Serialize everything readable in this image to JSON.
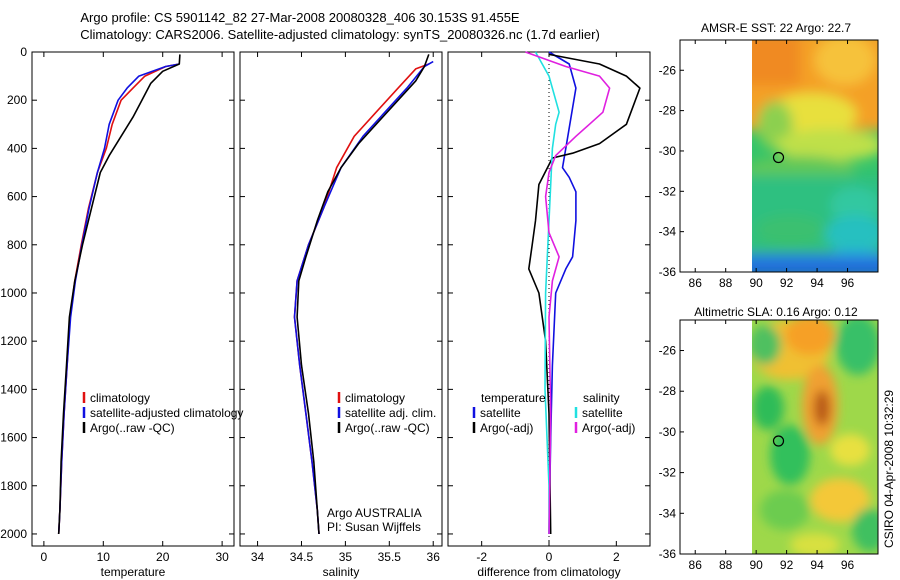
{
  "header": {
    "line1": "Argo profile: CS 5901142_82 27-Mar-2008 20080328_406 30.153S 91.455E",
    "line2": "Climatology: CARS2006. Satellite-adjusted climatology: synTS_20080326.nc (1.7d earlier)"
  },
  "side_label": "CSIRO 04-Apr-2008 10:32:29",
  "colors": {
    "red": "#e01010",
    "blue": "#1010e0",
    "black": "#000000",
    "cyan": "#20e0e0",
    "magenta": "#e020e0"
  },
  "chart_data": [
    {
      "type": "line",
      "id": "temperature",
      "xlabel": "temperature",
      "xlim": [
        -2,
        32
      ],
      "ylim": [
        2050,
        0
      ],
      "xticks": [
        0,
        10,
        20,
        30
      ],
      "yticks": [
        0,
        200,
        400,
        600,
        800,
        1000,
        1200,
        1400,
        1600,
        1800,
        2000
      ],
      "legend": [
        "climatology",
        "satellite-adjusted climatology",
        "Argo(..raw -QC)"
      ],
      "series": [
        {
          "name": "climatology",
          "color": "red",
          "points": [
            [
              22.8,
              50
            ],
            [
              20.5,
              60
            ],
            [
              17,
              100
            ],
            [
              15,
              150
            ],
            [
              13,
              200
            ],
            [
              11.5,
              300
            ],
            [
              10.5,
              400
            ],
            [
              9,
              500
            ],
            [
              7.5,
              650
            ],
            [
              6.3,
              800
            ],
            [
              5.2,
              950
            ],
            [
              4.4,
              1100
            ],
            [
              3.9,
              1300
            ],
            [
              3.4,
              1500
            ],
            [
              3.0,
              1700
            ],
            [
              2.7,
              1900
            ],
            [
              2.5,
              2000
            ]
          ]
        },
        {
          "name": "satellite-adjusted climatology",
          "color": "blue",
          "points": [
            [
              22.8,
              50
            ],
            [
              20.5,
              60
            ],
            [
              16,
              100
            ],
            [
              14,
              150
            ],
            [
              12.5,
              200
            ],
            [
              11,
              300
            ],
            [
              10.2,
              400
            ],
            [
              9,
              500
            ],
            [
              7.6,
              650
            ],
            [
              6.4,
              800
            ],
            [
              5.3,
              950
            ],
            [
              4.5,
              1100
            ],
            [
              3.9,
              1300
            ],
            [
              3.4,
              1500
            ],
            [
              3.0,
              1700
            ],
            [
              2.7,
              1900
            ],
            [
              2.5,
              2000
            ]
          ]
        },
        {
          "name": "Argo(..raw -QC)",
          "color": "black",
          "points": [
            [
              22.9,
              10
            ],
            [
              22.8,
              50
            ],
            [
              20,
              80
            ],
            [
              18,
              130
            ],
            [
              16.5,
              200
            ],
            [
              15,
              270
            ],
            [
              13,
              350
            ],
            [
              11,
              430
            ],
            [
              9.5,
              500
            ],
            [
              8,
              650
            ],
            [
              6.5,
              800
            ],
            [
              5.2,
              950
            ],
            [
              4.3,
              1100
            ],
            [
              3.8,
              1300
            ],
            [
              3.3,
              1500
            ],
            [
              2.9,
              1700
            ],
            [
              2.7,
              1900
            ],
            [
              2.5,
              2000
            ]
          ]
        }
      ]
    },
    {
      "type": "line",
      "id": "salinity",
      "xlabel": "salinity",
      "xlim": [
        33.8,
        36.1
      ],
      "ylim": [
        2050,
        0
      ],
      "xticks": [
        34,
        34.5,
        35,
        35.5,
        36
      ],
      "yticks": [
        0,
        200,
        400,
        600,
        800,
        1000,
        1200,
        1400,
        1600,
        1800,
        2000
      ],
      "legend": [
        "climatology",
        "satellite adj. clim.",
        "Argo(..raw -QC)"
      ],
      "annotation": [
        "Argo AUSTRALIA",
        "PI: Susan Wijffels"
      ],
      "series": [
        {
          "name": "climatology",
          "color": "red",
          "points": [
            [
              35.95,
              50
            ],
            [
              35.8,
              70
            ],
            [
              35.6,
              150
            ],
            [
              35.35,
              250
            ],
            [
              35.1,
              350
            ],
            [
              34.9,
              480
            ],
            [
              34.75,
              650
            ],
            [
              34.58,
              800
            ],
            [
              34.45,
              950
            ],
            [
              34.42,
              1100
            ],
            [
              34.48,
              1300
            ],
            [
              34.55,
              1500
            ],
            [
              34.62,
              1700
            ],
            [
              34.68,
              1900
            ],
            [
              34.7,
              2000
            ]
          ]
        },
        {
          "name": "satellite adj. clim.",
          "color": "blue",
          "points": [
            [
              36.0,
              40
            ],
            [
              35.9,
              60
            ],
            [
              35.7,
              150
            ],
            [
              35.45,
              250
            ],
            [
              35.2,
              350
            ],
            [
              34.95,
              480
            ],
            [
              34.75,
              650
            ],
            [
              34.58,
              800
            ],
            [
              34.45,
              950
            ],
            [
              34.42,
              1100
            ],
            [
              34.48,
              1300
            ],
            [
              34.55,
              1500
            ],
            [
              34.62,
              1700
            ],
            [
              34.68,
              1900
            ],
            [
              34.7,
              2000
            ]
          ]
        },
        {
          "name": "Argo(..raw -QC)",
          "color": "black",
          "points": [
            [
              35.95,
              10
            ],
            [
              35.9,
              60
            ],
            [
              35.8,
              120
            ],
            [
              35.6,
              200
            ],
            [
              35.35,
              300
            ],
            [
              35.15,
              380
            ],
            [
              34.95,
              480
            ],
            [
              34.8,
              580
            ],
            [
              34.68,
              700
            ],
            [
              34.55,
              850
            ],
            [
              34.47,
              950
            ],
            [
              34.45,
              1100
            ],
            [
              34.5,
              1300
            ],
            [
              34.58,
              1500
            ],
            [
              34.64,
              1700
            ],
            [
              34.68,
              1900
            ],
            [
              34.7,
              2000
            ]
          ]
        }
      ]
    },
    {
      "type": "line",
      "id": "difference",
      "xlabel": "difference from climatology",
      "xlim": [
        -3,
        3
      ],
      "ylim": [
        2050,
        0
      ],
      "xticks": [
        -2,
        0,
        2
      ],
      "yticks": [
        0,
        200,
        400,
        600,
        800,
        1000,
        1200,
        1400,
        1600,
        1800,
        2000
      ],
      "legend_titles": [
        "temperature",
        "salinity"
      ],
      "legend": [
        "satellite",
        "Argo(-adj)",
        "satellite",
        "Argo(-adj)"
      ],
      "series": [
        {
          "name": "temperature satellite",
          "color": "blue",
          "points": [
            [
              0,
              0
            ],
            [
              0.6,
              50
            ],
            [
              0.8,
              150
            ],
            [
              0.5,
              400
            ],
            [
              0.4,
              480
            ],
            [
              0.6,
              520
            ],
            [
              0.8,
              580
            ],
            [
              0.8,
              700
            ],
            [
              0.7,
              850
            ],
            [
              0.5,
              900
            ],
            [
              0.2,
              1000
            ],
            [
              0.1,
              1300
            ],
            [
              0.05,
              1600
            ],
            [
              0,
              2000
            ]
          ]
        },
        {
          "name": "temperature Argo(-adj)",
          "color": "black",
          "points": [
            [
              0,
              10
            ],
            [
              1.5,
              50
            ],
            [
              2.3,
              100
            ],
            [
              2.7,
              150
            ],
            [
              2.3,
              300
            ],
            [
              1.5,
              380
            ],
            [
              0.7,
              420
            ],
            [
              0.1,
              440
            ],
            [
              -0.3,
              550
            ],
            [
              -0.4,
              700
            ],
            [
              -0.5,
              800
            ],
            [
              -0.6,
              900
            ],
            [
              -0.3,
              1000
            ],
            [
              -0.1,
              1200
            ],
            [
              0,
              1500
            ],
            [
              0.05,
              2000
            ]
          ]
        },
        {
          "name": "salinity satellite",
          "color": "cyan",
          "points": [
            [
              -0.4,
              0
            ],
            [
              0,
              100
            ],
            [
              0.3,
              250
            ],
            [
              0.2,
              300
            ],
            [
              0.1,
              400
            ],
            [
              0,
              700
            ],
            [
              -0.1,
              1000
            ],
            [
              -0.12,
              1400
            ],
            [
              0,
              1800
            ],
            [
              0,
              2000
            ]
          ]
        },
        {
          "name": "salinity Argo(-adj)",
          "color": "magenta",
          "points": [
            [
              -0.7,
              0
            ],
            [
              0.5,
              60
            ],
            [
              1.5,
              100
            ],
            [
              1.8,
              150
            ],
            [
              1.6,
              250
            ],
            [
              1.2,
              300
            ],
            [
              0.8,
              350
            ],
            [
              0.2,
              430
            ],
            [
              0,
              500
            ],
            [
              -0.1,
              600
            ],
            [
              0,
              750
            ],
            [
              0.3,
              850
            ],
            [
              0.1,
              950
            ],
            [
              0,
              1100
            ],
            [
              0.05,
              1500
            ],
            [
              0,
              2000
            ]
          ]
        }
      ]
    },
    {
      "type": "heatmap",
      "id": "sst_map",
      "title": "AMSR-E SST: 22 Argo: 22.7",
      "xlim": [
        85,
        98
      ],
      "ylim": [
        -36,
        -24.5
      ],
      "xticks": [
        86,
        88,
        90,
        92,
        94,
        96
      ],
      "yticks": [
        -26,
        -28,
        -30,
        -32,
        -34,
        -36
      ],
      "marker": [
        91.455,
        -30.153
      ]
    },
    {
      "type": "heatmap",
      "id": "sla_map",
      "title": "Altimetric SLA: 0.16 Argo: 0.12",
      "xlim": [
        85,
        98
      ],
      "ylim": [
        -36,
        -24.5
      ],
      "xticks": [
        86,
        88,
        90,
        92,
        94,
        96
      ],
      "yticks": [
        -26,
        -28,
        -30,
        -32,
        -34,
        -36
      ],
      "marker": [
        91.455,
        -30.153
      ]
    }
  ]
}
